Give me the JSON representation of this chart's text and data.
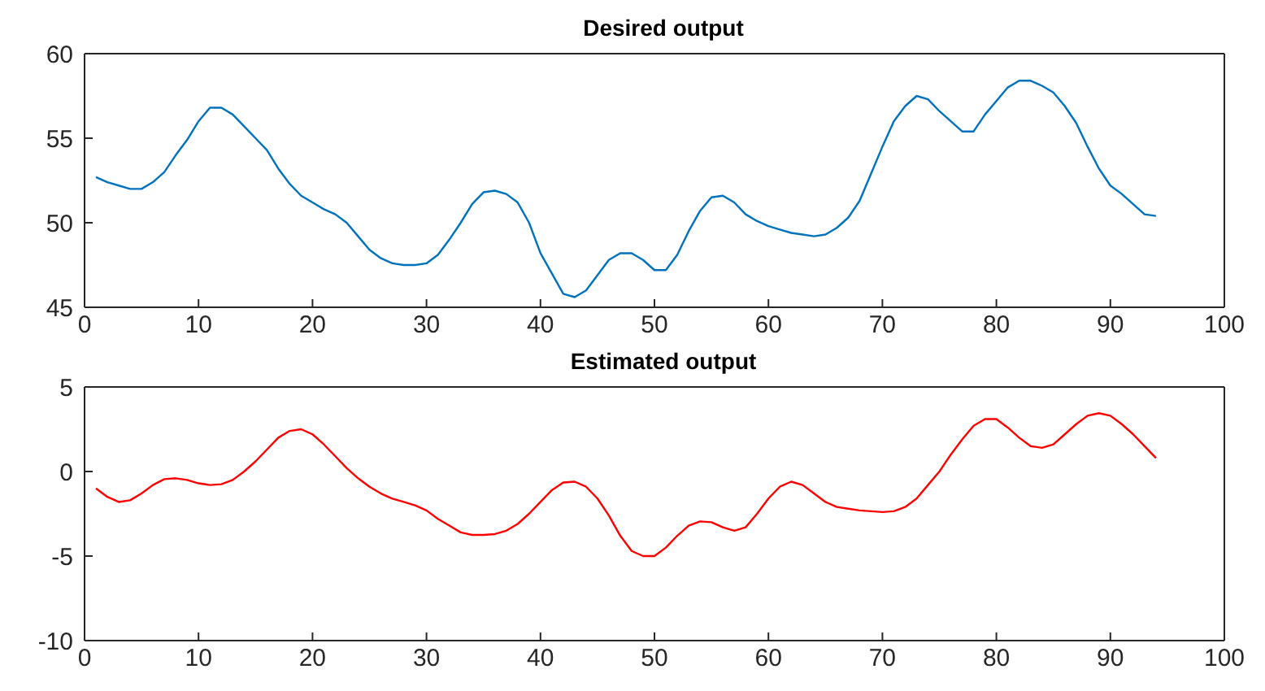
{
  "chart_data": [
    {
      "type": "line",
      "title": "Desired output",
      "marker": "none",
      "line_style": "solid",
      "x": [
        1,
        2,
        3,
        4,
        5,
        6,
        7,
        8,
        9,
        10,
        11,
        12,
        13,
        14,
        15,
        16,
        17,
        18,
        19,
        20,
        21,
        22,
        23,
        24,
        25,
        26,
        27,
        28,
        29,
        30,
        31,
        32,
        33,
        34,
        35,
        36,
        37,
        38,
        39,
        40,
        41,
        42,
        43,
        44,
        45,
        46,
        47,
        48,
        49,
        50,
        51,
        52,
        53,
        54,
        55,
        56,
        57,
        58,
        59,
        60,
        61,
        62,
        63,
        64,
        65,
        66,
        67,
        68,
        69,
        70,
        71,
        72,
        73,
        74,
        75,
        76,
        77,
        78,
        79,
        80,
        81,
        82,
        83,
        84,
        85,
        86,
        87,
        88,
        89,
        90,
        91,
        92,
        93,
        94
      ],
      "series": [
        {
          "color": "#0072bd",
          "values": [
            52.7,
            52.4,
            52.2,
            52.0,
            52.0,
            52.4,
            53.0,
            54.0,
            54.9,
            56.0,
            56.8,
            56.8,
            56.4,
            55.7,
            55.0,
            54.3,
            53.2,
            52.3,
            51.6,
            51.2,
            50.8,
            50.5,
            50.0,
            49.2,
            48.4,
            47.9,
            47.6,
            47.5,
            47.5,
            47.6,
            48.1,
            49.0,
            50.0,
            51.1,
            51.8,
            51.9,
            51.7,
            51.2,
            50.0,
            48.2,
            47.0,
            45.8,
            45.6,
            46.0,
            46.9,
            47.8,
            48.2,
            48.2,
            47.8,
            47.2,
            47.2,
            48.1,
            49.5,
            50.7,
            51.5,
            51.6,
            51.2,
            50.5,
            50.1,
            49.8,
            49.6,
            49.4,
            49.3,
            49.2,
            49.3,
            49.7,
            50.3,
            51.3,
            52.9,
            54.5,
            56.0,
            56.9,
            57.5,
            57.3,
            56.6,
            56.0,
            55.4,
            55.4,
            56.4,
            57.2,
            58.0,
            58.4,
            58.4,
            58.1,
            57.7,
            56.9,
            55.9,
            54.5,
            53.2,
            52.2,
            51.7,
            51.1,
            50.5,
            50.4
          ]
        }
      ],
      "xlim": [
        0,
        100
      ],
      "xticks": [
        0,
        10,
        20,
        30,
        40,
        50,
        60,
        70,
        80,
        90,
        100
      ],
      "ylim": [
        45,
        60
      ],
      "yticks": [
        45,
        50,
        55,
        60
      ]
    },
    {
      "type": "line",
      "title": "Estimated output",
      "marker": "none",
      "line_style": "solid",
      "x": [
        1,
        2,
        3,
        4,
        5,
        6,
        7,
        8,
        9,
        10,
        11,
        12,
        13,
        14,
        15,
        16,
        17,
        18,
        19,
        20,
        21,
        22,
        23,
        24,
        25,
        26,
        27,
        28,
        29,
        30,
        31,
        32,
        33,
        34,
        35,
        36,
        37,
        38,
        39,
        40,
        41,
        42,
        43,
        44,
        45,
        46,
        47,
        48,
        49,
        50,
        51,
        52,
        53,
        54,
        55,
        56,
        57,
        58,
        59,
        60,
        61,
        62,
        63,
        64,
        65,
        66,
        67,
        68,
        69,
        70,
        71,
        72,
        73,
        74,
        75,
        76,
        77,
        78,
        79,
        80,
        81,
        82,
        83,
        84,
        85,
        86,
        87,
        88,
        89,
        90,
        91,
        92,
        93,
        94
      ],
      "series": [
        {
          "color": "#ff0000",
          "values": [
            -1.0,
            -1.5,
            -1.8,
            -1.7,
            -1.3,
            -0.8,
            -0.45,
            -0.4,
            -0.5,
            -0.7,
            -0.8,
            -0.75,
            -0.5,
            0.0,
            0.6,
            1.3,
            2.0,
            2.4,
            2.5,
            2.2,
            1.6,
            0.9,
            0.2,
            -0.4,
            -0.9,
            -1.3,
            -1.6,
            -1.8,
            -2.0,
            -2.3,
            -2.8,
            -3.2,
            -3.6,
            -3.75,
            -3.75,
            -3.7,
            -3.5,
            -3.1,
            -2.5,
            -1.8,
            -1.1,
            -0.65,
            -0.6,
            -0.9,
            -1.6,
            -2.6,
            -3.8,
            -4.7,
            -5.0,
            -5.0,
            -4.5,
            -3.8,
            -3.2,
            -2.95,
            -3.0,
            -3.3,
            -3.5,
            -3.3,
            -2.5,
            -1.6,
            -0.9,
            -0.6,
            -0.8,
            -1.3,
            -1.8,
            -2.1,
            -2.2,
            -2.3,
            -2.35,
            -2.4,
            -2.35,
            -2.1,
            -1.6,
            -0.8,
            0.0,
            1.0,
            1.9,
            2.7,
            3.1,
            3.1,
            2.6,
            2.0,
            1.5,
            1.4,
            1.6,
            2.2,
            2.8,
            3.3,
            3.45,
            3.3,
            2.8,
            2.2,
            1.5,
            0.8
          ]
        }
      ],
      "xlim": [
        0,
        100
      ],
      "xticks": [
        0,
        10,
        20,
        30,
        40,
        50,
        60,
        70,
        80,
        90,
        100
      ],
      "ylim": [
        -10,
        5
      ],
      "yticks": [
        -10,
        -5,
        0,
        5
      ]
    }
  ]
}
